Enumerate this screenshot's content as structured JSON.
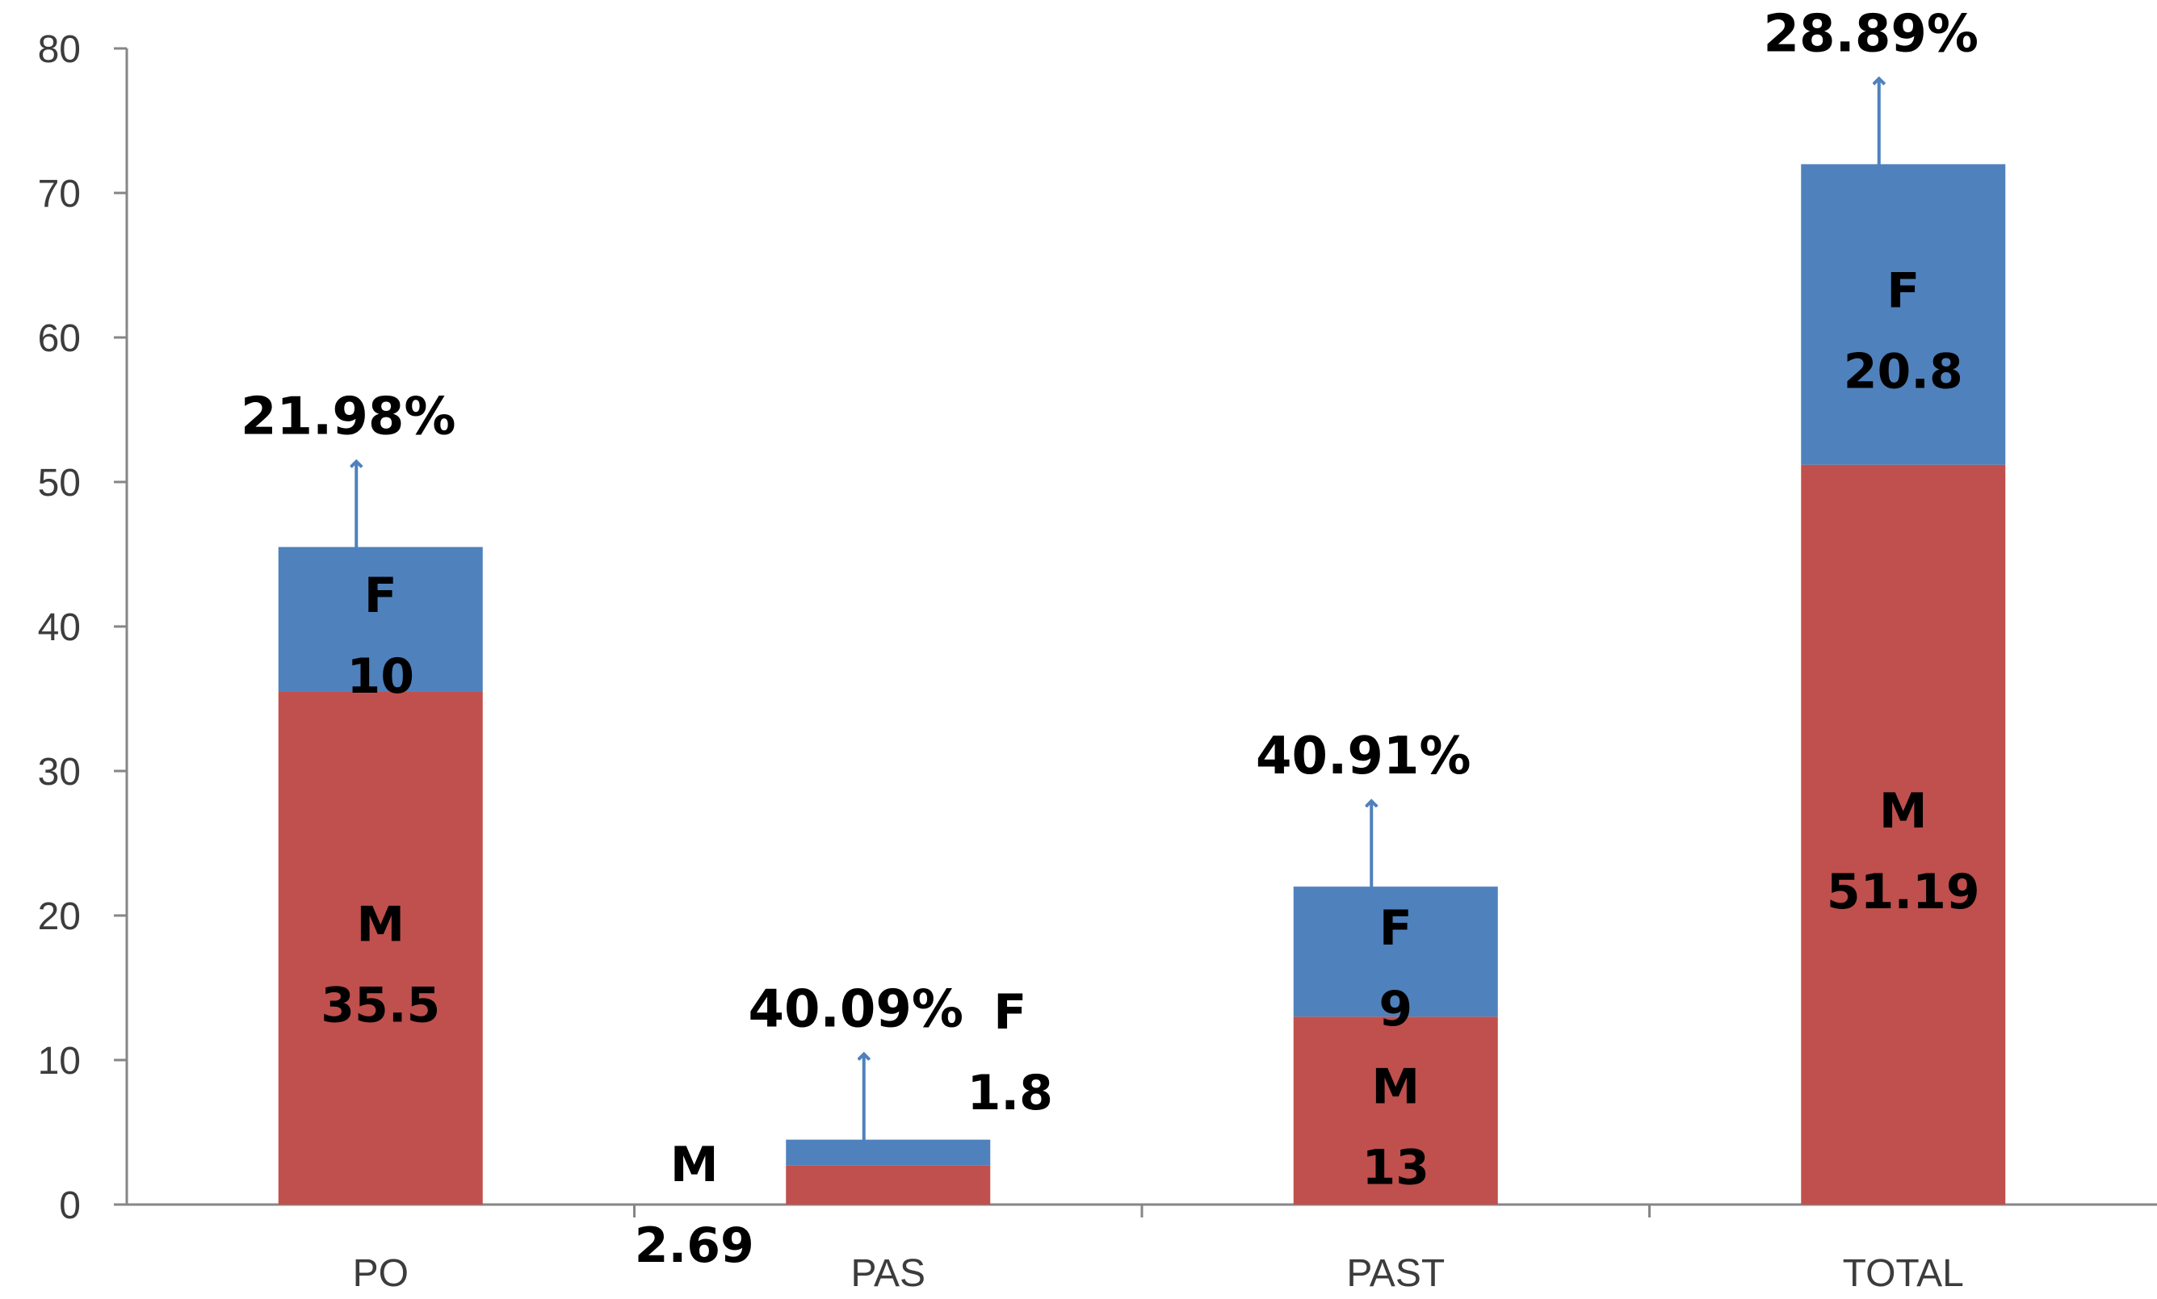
{
  "chart_data": {
    "type": "bar",
    "stacked": true,
    "categories": [
      "PO",
      "PAS",
      "PAST",
      "TOTAL"
    ],
    "series": [
      {
        "name": "M",
        "values": [
          35.5,
          2.69,
          13,
          51.19
        ],
        "color": "#c0504d"
      },
      {
        "name": "F",
        "values": [
          10,
          1.8,
          9,
          20.8
        ],
        "color": "#4f81bd"
      }
    ],
    "segment_labels": {
      "M": [
        "35.5",
        "2.69",
        "13",
        "51.19"
      ],
      "F": [
        "10",
        "1.8",
        "9",
        "20.8"
      ]
    },
    "female_percent": [
      "21.98%",
      "40.09%",
      "40.91%",
      "28.89%"
    ],
    "ylim": [
      0,
      80
    ],
    "yticks": [
      "0",
      "10",
      "20",
      "30",
      "40",
      "50",
      "60",
      "70",
      "80"
    ],
    "arrow_color": "#4f81bd",
    "grid": false,
    "legend": "none"
  }
}
